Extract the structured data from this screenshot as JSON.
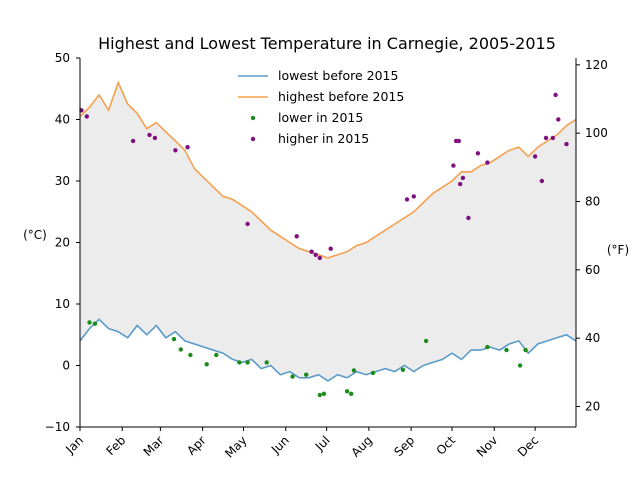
{
  "chart_data": {
    "type": "line",
    "title": "Highest and Lowest Temperature in Carnegie, 2005-2015",
    "ylabel_left": "(°C)",
    "ylabel_right": "(°F)",
    "ylim": [
      -10,
      50
    ],
    "ylim_f": [
      14,
      122
    ],
    "y_ticks": [
      -10,
      0,
      10,
      20,
      30,
      40,
      50
    ],
    "y_ticks_f": [
      20,
      40,
      60,
      80,
      100,
      120
    ],
    "x_ticks": [
      {
        "label": "Jan",
        "day": 1
      },
      {
        "label": "Feb",
        "day": 32
      },
      {
        "label": "Mar",
        "day": 60
      },
      {
        "label": "Apr",
        "day": 91
      },
      {
        "label": "May",
        "day": 121
      },
      {
        "label": "Jun",
        "day": 152
      },
      {
        "label": "Jul",
        "day": 182
      },
      {
        "label": "Aug",
        "day": 213
      },
      {
        "label": "Sep",
        "day": 244
      },
      {
        "label": "Oct",
        "day": 274
      },
      {
        "label": "Nov",
        "day": 305
      },
      {
        "label": "Dec",
        "day": 335
      }
    ],
    "x_range": [
      1,
      365
    ],
    "legend_position": "top-center",
    "grid": false,
    "fill_between": true,
    "fill_color": "#e0e0e0",
    "series": [
      {
        "name": "lowest before 2015",
        "kind": "line",
        "color": "#5b9bc8",
        "x": [
          1,
          8,
          15,
          22,
          29,
          36,
          43,
          50,
          57,
          64,
          71,
          78,
          85,
          92,
          99,
          106,
          113,
          120,
          127,
          134,
          141,
          148,
          155,
          162,
          169,
          176,
          183,
          190,
          197,
          204,
          211,
          218,
          225,
          232,
          239,
          246,
          253,
          260,
          267,
          274,
          281,
          288,
          295,
          302,
          309,
          316,
          323,
          330,
          337,
          344,
          351,
          358,
          365
        ],
        "y": [
          4.0,
          6.0,
          7.5,
          6.0,
          5.5,
          4.5,
          6.5,
          5.0,
          6.5,
          4.5,
          5.5,
          4.0,
          3.5,
          3.0,
          2.5,
          2.0,
          1.0,
          0.5,
          1.0,
          -0.5,
          0.0,
          -1.5,
          -1.0,
          -2.0,
          -2.0,
          -1.5,
          -2.5,
          -1.5,
          -2.0,
          -1.0,
          -1.5,
          -1.0,
          -0.5,
          -1.0,
          0.0,
          -1.0,
          0.0,
          0.5,
          1.0,
          2.0,
          1.0,
          2.5,
          2.5,
          3.0,
          2.5,
          3.5,
          4.0,
          2.0,
          3.5,
          4.0,
          4.5,
          5.0,
          4.0
        ]
      },
      {
        "name": "highest before 2015",
        "kind": "line",
        "color": "#f5a04e",
        "x": [
          1,
          8,
          15,
          22,
          29,
          36,
          43,
          50,
          57,
          64,
          71,
          78,
          85,
          92,
          99,
          106,
          113,
          120,
          127,
          134,
          141,
          148,
          155,
          162,
          169,
          176,
          183,
          190,
          197,
          204,
          211,
          218,
          225,
          232,
          239,
          246,
          253,
          260,
          267,
          274,
          281,
          288,
          295,
          302,
          309,
          316,
          323,
          330,
          337,
          344,
          351,
          358,
          365
        ],
        "y": [
          40.5,
          42.0,
          44.0,
          41.5,
          46.0,
          42.5,
          41.0,
          38.5,
          39.5,
          38.0,
          36.5,
          35.0,
          32.0,
          30.5,
          29.0,
          27.5,
          27.0,
          26.0,
          25.0,
          23.5,
          22.0,
          21.0,
          20.0,
          19.0,
          18.5,
          18.0,
          17.5,
          18.0,
          18.5,
          19.5,
          20.0,
          21.0,
          22.0,
          23.0,
          24.0,
          25.0,
          26.5,
          28.0,
          29.0,
          30.0,
          31.5,
          31.5,
          32.5,
          33.0,
          34.0,
          35.0,
          35.5,
          34.0,
          35.5,
          36.5,
          37.5,
          39.0,
          40.0
        ]
      },
      {
        "name": "lower in 2015",
        "kind": "scatter",
        "color": "#1a8c1a",
        "x": [
          8,
          12,
          70,
          75,
          82,
          94,
          101,
          118,
          124,
          138,
          157,
          167,
          177,
          180,
          197,
          200,
          202,
          216,
          238,
          255,
          300,
          314,
          324,
          328
        ],
        "y": [
          7.0,
          6.8,
          4.3,
          2.6,
          1.7,
          0.2,
          1.7,
          0.5,
          0.5,
          0.5,
          -1.8,
          -1.5,
          -4.8,
          -4.6,
          -4.2,
          -4.6,
          -0.8,
          -1.2,
          -0.7,
          4.0,
          3.0,
          2.5,
          0.0,
          2.5
        ]
      },
      {
        "name": "higher in 2015",
        "kind": "scatter",
        "color": "#7f0f7f",
        "x": [
          2,
          6,
          40,
          52,
          56,
          71,
          80,
          124,
          160,
          171,
          174,
          177,
          185,
          241,
          246,
          275,
          277,
          279,
          280,
          282,
          286,
          293,
          300,
          335,
          340,
          343,
          348,
          350,
          352,
          358
        ],
        "y": [
          41.5,
          40.5,
          36.5,
          37.5,
          37.0,
          35.0,
          35.5,
          23.0,
          21.0,
          18.5,
          18.0,
          17.5,
          19.0,
          27.0,
          27.5,
          32.5,
          36.5,
          36.5,
          29.5,
          30.5,
          24.0,
          34.5,
          33.0,
          34.0,
          30.0,
          37.0,
          37.0,
          44.0,
          40.0,
          36.0
        ]
      }
    ]
  }
}
